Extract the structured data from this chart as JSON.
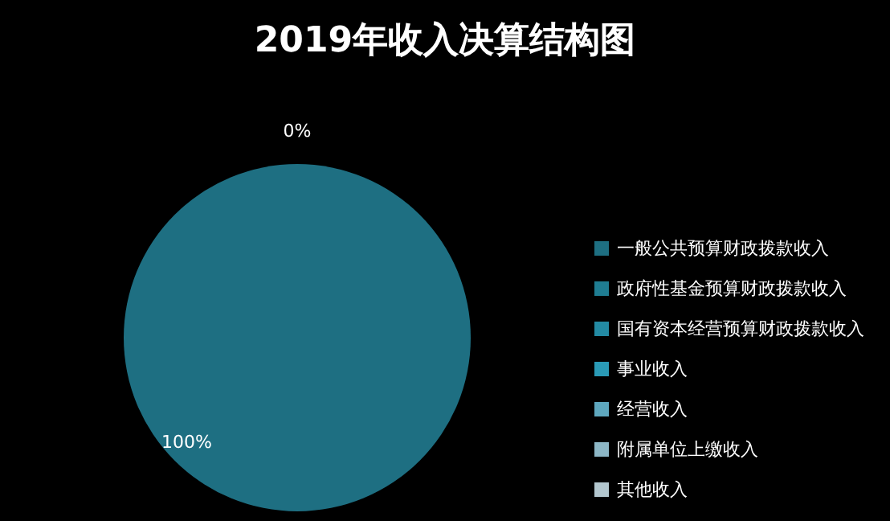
{
  "chart_data": {
    "type": "pie",
    "title": "2019年收入决算结构图",
    "categories": [
      "一般公共预算财政拨款收入",
      "政府性基金预算财政拨款收入",
      "国有资本经营预算财政拨款收入",
      "事业收入",
      "经营收入",
      "附属单位上缴收入",
      "其他收入"
    ],
    "values": [
      100,
      0,
      0,
      0,
      0,
      0,
      0
    ],
    "value_labels": [
      "100%",
      "0%",
      null,
      null,
      null,
      null,
      null
    ],
    "colors": [
      "#1e6f82",
      "#1f7d92",
      "#238aa3",
      "#2a9ab6",
      "#5ea7be",
      "#8db7c6",
      "#b2c6ce"
    ],
    "legend": "right"
  }
}
